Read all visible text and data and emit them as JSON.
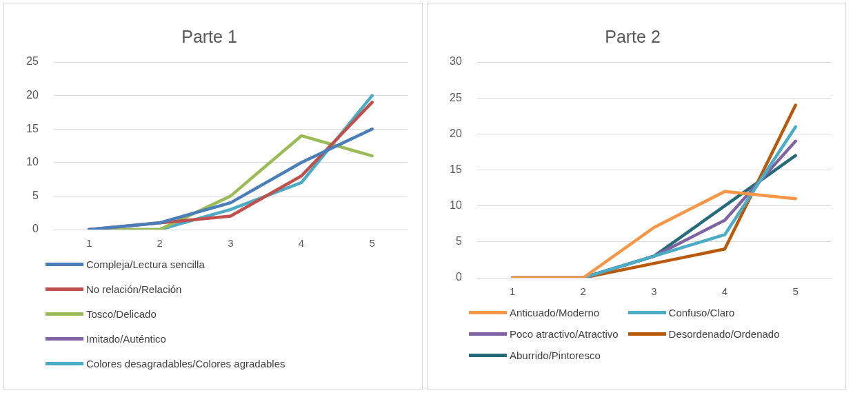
{
  "chart_data": [
    {
      "type": "line",
      "title": "Parte 1",
      "categories": [
        "1",
        "2",
        "3",
        "4",
        "5"
      ],
      "ylim": [
        0,
        25
      ],
      "yticks": [
        0,
        5,
        10,
        15,
        20,
        25
      ],
      "grid": "y",
      "legend": "bottom",
      "marker": "none",
      "series": [
        {
          "name": "Compleja/Lectura sencilla",
          "color": "#4a7ebb",
          "values": [
            0,
            1,
            4,
            10,
            15
          ]
        },
        {
          "name": "No relación/Relación",
          "color": "#c0504d",
          "values": [
            0,
            1,
            2,
            8,
            19
          ]
        },
        {
          "name": "Tosco/Delicado",
          "color": "#9bbb59",
          "values": [
            0,
            0,
            5,
            14,
            11
          ]
        },
        {
          "name": "Imitado/Auténtico",
          "color": "#8064a2",
          "values": [
            null,
            null,
            null,
            null,
            null
          ]
        },
        {
          "name": "Colores desagradables/Colores agradables",
          "color": "#4bacc6",
          "values": [
            0,
            0,
            3,
            7,
            20
          ]
        }
      ]
    },
    {
      "type": "line",
      "title": "Parte 2",
      "categories": [
        "1",
        "2",
        "3",
        "4",
        "5"
      ],
      "ylim": [
        0,
        30
      ],
      "yticks": [
        0,
        5,
        10,
        15,
        20,
        25,
        30
      ],
      "grid": "y",
      "legend": "bottom",
      "marker": "none",
      "series": [
        {
          "name": "Anticuado/Moderno",
          "color": "#f79646",
          "values": [
            0,
            0,
            7,
            12,
            11
          ]
        },
        {
          "name": "Confuso/Claro",
          "color": "#4bacc6",
          "values": [
            0,
            0,
            3,
            6,
            21
          ]
        },
        {
          "name": "Poco atractivo/Atractivo",
          "color": "#8064a2",
          "values": [
            0,
            0,
            3,
            8,
            19
          ]
        },
        {
          "name": "Desordenado/Ordenado",
          "color": "#b85a0a",
          "values": [
            0,
            0,
            2,
            4,
            24
          ]
        },
        {
          "name": "Aburrido/Pintoresco",
          "color": "#266b7a",
          "values": [
            0,
            0,
            3,
            10,
            17
          ]
        }
      ]
    }
  ]
}
